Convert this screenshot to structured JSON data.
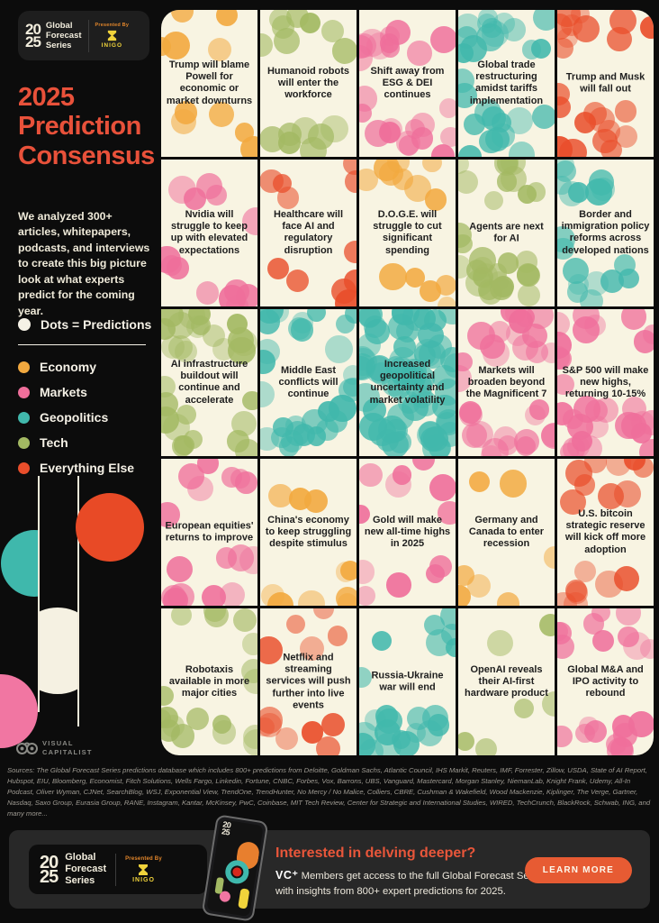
{
  "header_logo": {
    "year_top": "20",
    "year_bottom": "25",
    "series_lines": [
      "Global",
      "Forecast",
      "Series"
    ],
    "presented_by": "Presented By",
    "sponsor": "INIGO"
  },
  "sidebar": {
    "title": "2025 Prediction Consensus",
    "description": "We analyzed 300+ articles, whitepapers, podcasts, and interviews to create this big picture look at what experts predict for the coming year.",
    "legend": {
      "dots_label": "Dots = Predictions"
    },
    "vc_logo_line1": "VISUAL",
    "vc_logo_line2": "CAPITALIST"
  },
  "chart_data": {
    "type": "table",
    "title": "2025 Prediction Consensus",
    "unit_note": "Each dot represents one expert prediction",
    "grid": "5x5",
    "categories": [
      {
        "key": "economy",
        "label": "Economy",
        "color": "#F2A93F"
      },
      {
        "key": "markets",
        "label": "Markets",
        "color": "#EF6F9B"
      },
      {
        "key": "geopolitics",
        "label": "Geopolitics",
        "color": "#41B8AC"
      },
      {
        "key": "tech",
        "label": "Tech",
        "color": "#A3B963"
      },
      {
        "key": "else",
        "label": "Everything Else",
        "color": "#E94E2B"
      }
    ],
    "cells": [
      {
        "label": "Trump will blame Powell for economic or market downturns",
        "category": "economy",
        "dots": 10
      },
      {
        "label": "Humanoid robots will enter the workforce",
        "category": "tech",
        "dots": 15
      },
      {
        "label": "Shift away from ESG & DEI continues",
        "category": "markets",
        "dots": 24
      },
      {
        "label": "Global trade restructuring amidst tariffs implementation",
        "category": "geopolitics",
        "dots": 28
      },
      {
        "label": "Trump and Musk will fall out",
        "category": "else",
        "dots": 22
      },
      {
        "label": "Nvidia will struggle to keep up with elevated expectations",
        "category": "markets",
        "dots": 13
      },
      {
        "label": "Healthcare will face AI and regulatory disruption",
        "category": "else",
        "dots": 11
      },
      {
        "label": "D.O.G.E. will struggle to cut significant spending",
        "category": "economy",
        "dots": 13
      },
      {
        "label": "Agents are next for AI",
        "category": "tech",
        "dots": 30
      },
      {
        "label": "Border and immigration policy reforms across developed nations",
        "category": "geopolitics",
        "dots": 18
      },
      {
        "label": "AI infrastructure buildout will continue and accelerate",
        "category": "tech",
        "dots": 28
      },
      {
        "label": "Middle East conflicts will continue",
        "category": "geopolitics",
        "dots": 30
      },
      {
        "label": "Increased geopolitical uncertainty and market volatility",
        "category": "geopolitics",
        "dots": 64,
        "dense": true
      },
      {
        "label": "Markets will broaden beyond the Magnificent 7",
        "category": "markets",
        "dots": 30
      },
      {
        "label": "S&P 500 will make new highs, returning 10-15%",
        "category": "markets",
        "dots": 30
      },
      {
        "label": "European equities' returns to improve",
        "category": "markets",
        "dots": 16
      },
      {
        "label": "China's economy to keep struggling despite stimulus",
        "category": "economy",
        "dots": 10
      },
      {
        "label": "Gold will make new all-time highs in 2025",
        "category": "markets",
        "dots": 12
      },
      {
        "label": "Germany and Canada to enter recession",
        "category": "economy",
        "dots": 7
      },
      {
        "label": "U.S. bitcoin strategic reserve will kick off more adoption",
        "category": "else",
        "dots": 16
      },
      {
        "label": "Robotaxis available in more major cities",
        "category": "tech",
        "dots": 18
      },
      {
        "label": "Netflix and streaming services will push further into live events",
        "category": "else",
        "dots": 12
      },
      {
        "label": "Russia-Ukraine war will end",
        "category": "geopolitics",
        "dots": 22
      },
      {
        "label": "OpenAI reveals their AI-first hardware product",
        "category": "tech",
        "dots": 6
      },
      {
        "label": "Global M&A and IPO activity to rebound",
        "category": "markets",
        "dots": 20
      }
    ]
  },
  "sources": "Sources: The Global Forecast Series predictions database which includes 800+ predictions from Deloitte, Goldman Sachs, Atlantic Council, IHS Markit, Reuters, IMF, Forrester, Zillow, USDA, State of AI Report, Hubspot, EIU, Bloomberg, Economist, Fitch Solutions, Wells Fargo, Linkedin, Fortune, CNBC, Forbes, Vox, Barrons, UBS, Vanguard, Mastercard, Morgan Stanley, NiemanLab, Knight Frank, Udemy, All-In Podcast, Oliver Wyman, CJNet, SearchBlog, WSJ, Exponential View, TrendOne, TrendHunter, No Mercy / No Malice, Colliers, CBRE, Cushman & Wakefield, Wood Mackenzie, Kiplinger, The Verge, Gartner, Nasdaq, Saxo Group, Eurasia Group, RANE, Instagram, Kantar, McKinsey, PwC, Coinbase, MIT Tech Review, Center for Strategic and International Studies, WIRED, TechCrunch, BlackRock, Schwab, ING, and many more...",
  "banner": {
    "heading": "Interested in delving deeper?",
    "vc_plus": "VC⁺",
    "body": "Members get access to the full Global Forecast Series, with insights from 800+ expert predictions for 2025.",
    "button": "LEARN MORE"
  }
}
